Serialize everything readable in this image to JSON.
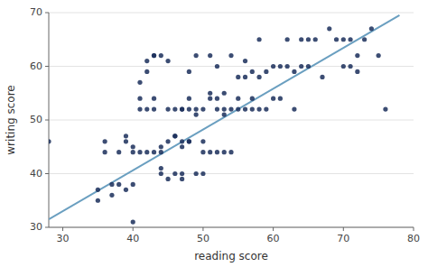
{
  "chart_data": {
    "type": "scatter",
    "xlabel": "reading score",
    "ylabel": "writing score",
    "xlim": [
      28,
      80
    ],
    "ylim": [
      30,
      70
    ],
    "xticks": [
      30,
      40,
      50,
      60,
      70,
      80
    ],
    "yticks": [
      30,
      40,
      50,
      60,
      70
    ],
    "grid": "y",
    "series": [
      {
        "type": "scatter",
        "color": "#1a2e5a",
        "marker": "circle",
        "x": [
          28,
          35,
          35,
          36,
          36,
          37,
          37,
          38,
          38,
          39,
          39,
          39,
          40,
          40,
          40,
          40,
          41,
          41,
          41,
          41,
          42,
          42,
          42,
          42,
          43,
          43,
          43,
          43,
          43,
          44,
          44,
          44,
          44,
          44,
          45,
          45,
          45,
          45,
          46,
          46,
          46,
          46,
          47,
          47,
          47,
          47,
          47,
          47,
          48,
          48,
          48,
          48,
          48,
          49,
          49,
          49,
          49,
          50,
          50,
          50,
          50,
          51,
          51,
          51,
          51,
          52,
          52,
          52,
          52,
          53,
          53,
          53,
          53,
          54,
          54,
          54,
          55,
          55,
          55,
          56,
          56,
          56,
          57,
          57,
          57,
          58,
          58,
          58,
          59,
          59,
          60,
          60,
          61,
          61,
          62,
          62,
          63,
          63,
          64,
          64,
          65,
          65,
          66,
          67,
          68,
          69,
          70,
          70,
          71,
          71,
          72,
          72,
          73,
          74,
          75,
          76
        ],
        "values": [
          46,
          35,
          37,
          44,
          46,
          36,
          38,
          38,
          44,
          37,
          46,
          47,
          31,
          38,
          44,
          45,
          44,
          52,
          54,
          57,
          44,
          52,
          59,
          61,
          44,
          52,
          54,
          62,
          62,
          40,
          41,
          44,
          45,
          62,
          39,
          46,
          52,
          61,
          40,
          47,
          47,
          52,
          39,
          40,
          45,
          46,
          52,
          52,
          46,
          46,
          52,
          54,
          59,
          40,
          51,
          52,
          62,
          40,
          44,
          46,
          52,
          44,
          54,
          55,
          62,
          44,
          52,
          54,
          60,
          44,
          51,
          52,
          55,
          44,
          52,
          62,
          52,
          54,
          58,
          52,
          58,
          61,
          52,
          54,
          59,
          52,
          58,
          65,
          52,
          59,
          54,
          60,
          54,
          60,
          60,
          65,
          52,
          59,
          60,
          65,
          60,
          65,
          65,
          58,
          67,
          65,
          60,
          65,
          60,
          65,
          59,
          62,
          65,
          67,
          62,
          52
        ]
      },
      {
        "type": "line",
        "color": "#6a9fc0",
        "line_style": "solid",
        "x": [
          28,
          78
        ],
        "values": [
          31.5,
          69.5
        ]
      }
    ]
  }
}
